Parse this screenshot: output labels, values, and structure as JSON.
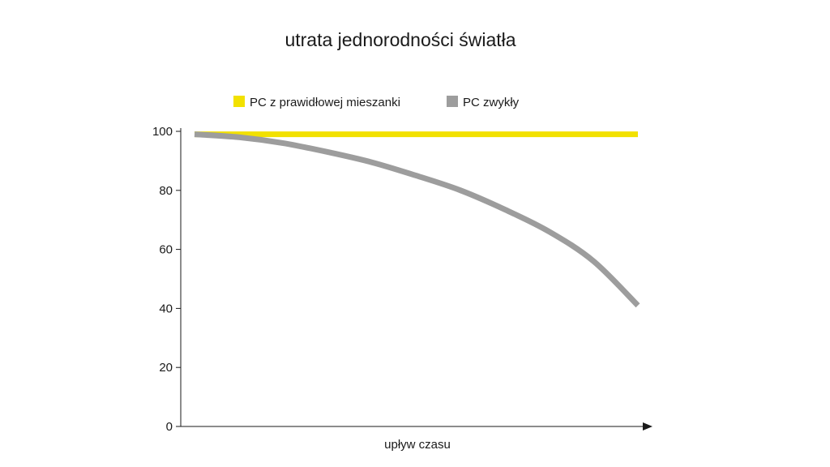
{
  "chart_data": {
    "type": "line",
    "title": "utrata jednorodności światła",
    "xlabel": "upływ czasu",
    "ylabel": "",
    "ylim": [
      0,
      100
    ],
    "yticks": [
      0,
      20,
      40,
      60,
      80,
      100
    ],
    "xlim": [
      0,
      100
    ],
    "legend_position": "top",
    "grid": false,
    "series": [
      {
        "name": "PC z prawidłowej mieszanki",
        "color": "#f2e100",
        "x": [
          0,
          100
        ],
        "y": [
          99,
          99
        ]
      },
      {
        "name": "PC zwykły",
        "color": "#9d9d9d",
        "x": [
          0,
          10,
          20,
          30,
          40,
          50,
          60,
          70,
          80,
          90,
          100
        ],
        "y": [
          99,
          98,
          96,
          93,
          89.5,
          85,
          80,
          73.5,
          66,
          56,
          41
        ]
      }
    ]
  }
}
